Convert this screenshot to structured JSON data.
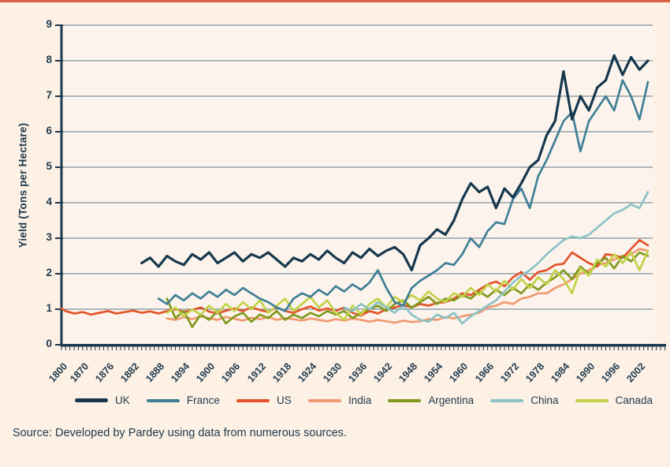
{
  "page": {
    "source_note": "Source: Developed by Pardey using data from numerous sources."
  },
  "chart_data": {
    "type": "line",
    "title": "",
    "xlabel": "",
    "ylabel": "Yield (Tons per Hectare)",
    "ylim": [
      0,
      9
    ],
    "y_ticks": [
      0,
      1,
      2,
      3,
      4,
      5,
      6,
      7,
      8,
      9
    ],
    "x_tick_labels": [
      "1800",
      "1870",
      "1876",
      "1882",
      "1888",
      "1894",
      "1900",
      "1906",
      "1912",
      "1918",
      "1924",
      "1930",
      "1936",
      "1942",
      "1948",
      "1954",
      "1960",
      "1966",
      "1972",
      "1978",
      "1984",
      "1990",
      "1996",
      "2002"
    ],
    "x_axis_note": "single point at 1800, then annual series to 2004; labels every 6 years",
    "grid": "horizontal",
    "legend_position": "bottom",
    "background_color": "#fdf0e5",
    "plot_background_color": "#fcf4ec",
    "axis_color": "#1b3a4e",
    "grid_color": "#5d7380",
    "text_color": "#1e3a4d",
    "draw_order": [
      3,
      2,
      4,
      6,
      5,
      1,
      0
    ],
    "series": [
      {
        "name": "UK",
        "color": "#16384e",
        "width": 3.2,
        "start_year": 1884,
        "step": 2,
        "values": [
          2.3,
          2.45,
          2.2,
          2.5,
          2.35,
          2.25,
          2.55,
          2.4,
          2.6,
          2.3,
          2.45,
          2.6,
          2.35,
          2.55,
          2.45,
          2.6,
          2.4,
          2.2,
          2.45,
          2.35,
          2.55,
          2.4,
          2.65,
          2.45,
          2.3,
          2.6,
          2.45,
          2.7,
          2.5,
          2.65,
          2.75,
          2.55,
          2.1,
          2.8,
          3.0,
          3.25,
          3.1,
          3.5,
          4.1,
          4.55,
          4.3,
          4.45,
          3.85,
          4.4,
          4.15,
          4.55,
          5.0,
          5.2,
          5.9,
          6.3,
          7.7,
          6.35,
          7.0,
          6.6,
          7.25,
          7.45,
          8.15,
          7.6,
          8.1,
          7.75,
          8.0
        ]
      },
      {
        "name": "France",
        "color": "#3f7f96",
        "width": 2.7,
        "start_year": 1888,
        "step": 2,
        "values": [
          1.3,
          1.15,
          1.4,
          1.25,
          1.45,
          1.3,
          1.5,
          1.35,
          1.55,
          1.4,
          1.6,
          1.45,
          1.3,
          1.2,
          1.05,
          0.95,
          1.3,
          1.45,
          1.35,
          1.55,
          1.4,
          1.65,
          1.5,
          1.7,
          1.55,
          1.75,
          2.1,
          1.6,
          1.2,
          1.1,
          1.6,
          1.8,
          1.95,
          2.1,
          2.3,
          2.25,
          2.55,
          3.0,
          2.75,
          3.2,
          3.45,
          3.4,
          4.1,
          4.4,
          3.85,
          4.75,
          5.2,
          5.75,
          6.3,
          6.55,
          5.45,
          6.3,
          6.65,
          7.0,
          6.6,
          7.45,
          7.0,
          6.35,
          7.4
        ]
      },
      {
        "name": "US",
        "color": "#e4532b",
        "width": 2.7,
        "pre": [
          [
            1800,
            1.02
          ]
        ],
        "start_year": 1866,
        "step": 2,
        "values": [
          0.95,
          0.88,
          0.92,
          0.85,
          0.9,
          0.95,
          0.88,
          0.92,
          0.96,
          0.9,
          0.94,
          0.88,
          0.95,
          1.0,
          0.92,
          0.98,
          1.05,
          0.93,
          0.88,
          0.96,
          1.02,
          0.95,
          1.05,
          0.98,
          0.92,
          1.06,
          0.95,
          0.9,
          1.0,
          1.08,
          0.96,
          1.02,
          0.95,
          1.05,
          0.9,
          0.82,
          0.95,
          0.88,
          1.0,
          1.05,
          1.12,
          1.05,
          1.15,
          1.1,
          1.18,
          1.2,
          1.3,
          1.45,
          1.4,
          1.55,
          1.7,
          1.78,
          1.65,
          1.9,
          2.05,
          1.83,
          2.05,
          2.1,
          2.25,
          2.28,
          2.6,
          2.45,
          2.3,
          2.2,
          2.55,
          2.52,
          2.45,
          2.7,
          2.95,
          2.8
        ]
      },
      {
        "name": "India",
        "color": "#f09a71",
        "width": 2.7,
        "start_year": 1890,
        "step": 2,
        "values": [
          0.74,
          0.7,
          0.78,
          0.72,
          0.8,
          0.75,
          0.7,
          0.78,
          0.73,
          0.68,
          0.76,
          0.72,
          0.78,
          0.7,
          0.75,
          0.72,
          0.68,
          0.74,
          0.7,
          0.66,
          0.72,
          0.68,
          0.74,
          0.7,
          0.65,
          0.7,
          0.66,
          0.62,
          0.68,
          0.64,
          0.66,
          0.72,
          0.7,
          0.78,
          0.74,
          0.8,
          0.85,
          0.9,
          1.05,
          1.1,
          1.2,
          1.15,
          1.3,
          1.35,
          1.45,
          1.45,
          1.6,
          1.7,
          1.85,
          2.0,
          2.1,
          2.25,
          2.3,
          2.4,
          2.5,
          2.55,
          2.7,
          2.65
        ]
      },
      {
        "name": "Argentina",
        "color": "#80991f",
        "width": 2.7,
        "start_year": 1890,
        "step": 2,
        "values": [
          1.3,
          0.75,
          0.95,
          0.5,
          0.85,
          0.7,
          0.95,
          0.6,
          0.8,
          0.9,
          0.65,
          0.85,
          0.75,
          0.95,
          0.7,
          0.85,
          0.75,
          0.9,
          0.8,
          0.95,
          0.85,
          0.95,
          0.75,
          0.9,
          1.0,
          1.1,
          0.95,
          1.15,
          1.25,
          1.05,
          1.2,
          1.35,
          1.15,
          1.3,
          1.25,
          1.4,
          1.3,
          1.5,
          1.35,
          1.55,
          1.4,
          1.6,
          1.45,
          1.7,
          1.55,
          1.75,
          1.9,
          2.1,
          1.85,
          2.2,
          2.0,
          2.3,
          2.45,
          2.15,
          2.5,
          2.35,
          2.6,
          2.5
        ]
      },
      {
        "name": "China",
        "color": "#8cc2c6",
        "width": 2.7,
        "start_year": 1932,
        "step": 2,
        "values": [
          1.05,
          0.95,
          1.15,
          1.0,
          1.2,
          1.05,
          0.9,
          1.1,
          0.85,
          0.7,
          0.65,
          0.85,
          0.75,
          0.9,
          0.6,
          0.8,
          0.95,
          1.1,
          1.25,
          1.5,
          1.75,
          1.95,
          2.1,
          2.3,
          2.55,
          2.75,
          2.95,
          3.05,
          3.0,
          3.1,
          3.3,
          3.5,
          3.7,
          3.8,
          3.95,
          3.85,
          4.3
        ]
      },
      {
        "name": "Canada",
        "color": "#c2d248",
        "width": 2.7,
        "start_year": 1890,
        "step": 2,
        "values": [
          0.9,
          1.05,
          0.8,
          1.0,
          0.85,
          1.1,
          0.9,
          1.15,
          0.95,
          1.2,
          1.0,
          1.25,
          0.9,
          1.1,
          1.3,
          0.95,
          1.15,
          1.35,
          1.05,
          1.25,
          0.9,
          0.7,
          1.1,
          0.85,
          1.15,
          1.3,
          1.05,
          1.35,
          1.2,
          1.4,
          1.25,
          1.5,
          1.3,
          1.2,
          1.45,
          1.35,
          1.6,
          1.4,
          1.7,
          1.5,
          1.8,
          1.55,
          1.85,
          1.6,
          1.9,
          1.7,
          2.1,
          1.85,
          1.45,
          2.15,
          1.95,
          2.4,
          2.2,
          2.55,
          2.3,
          2.6,
          2.1,
          2.65
        ]
      }
    ]
  }
}
